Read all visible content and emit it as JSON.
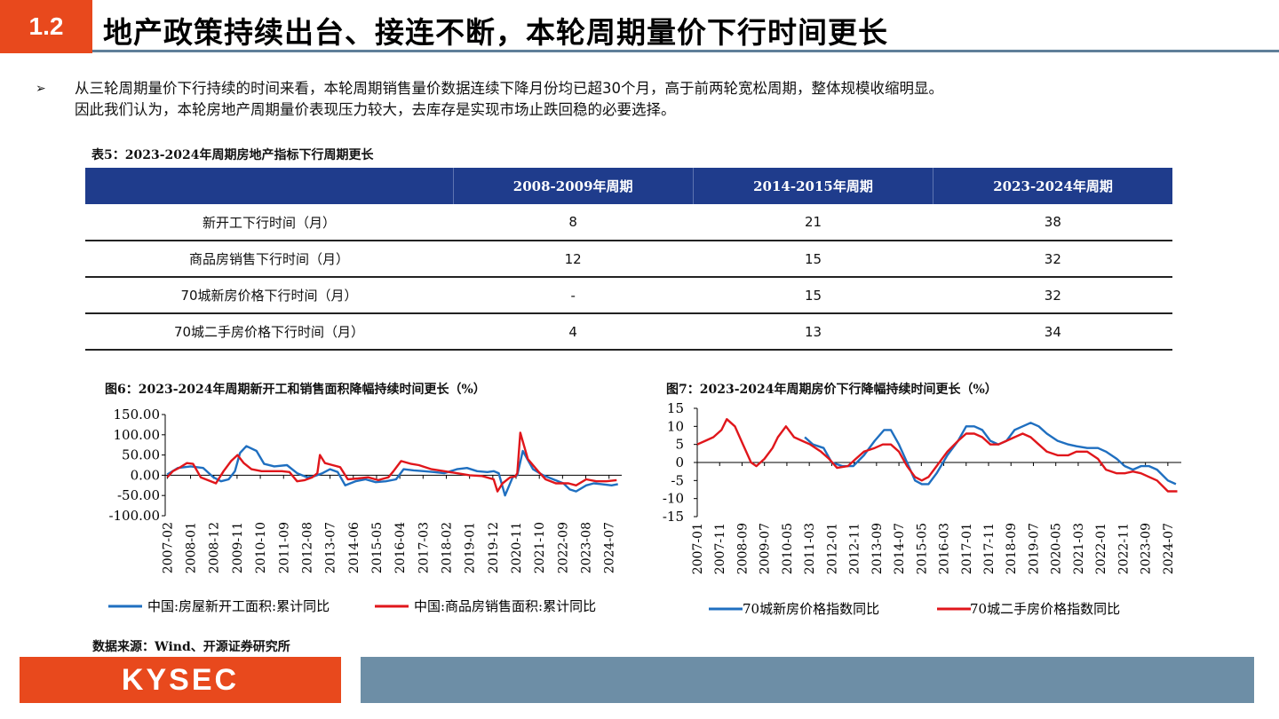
{
  "header": {
    "section_number": "1.2",
    "title": "地产政策持续出台、接连不断，本轮周期量价下行时间更长"
  },
  "bullet": {
    "mark": "➢",
    "line1": "从三轮周期量价下行持续的时间来看，本轮周期销售量价数据连续下降月份均已超30个月，高于前两轮宽松周期，整体规模收缩明显。",
    "line2": "因此我们认为，本轮房地产周期量价表现压力较大，去库存是实现市场止跌回稳的必要选择。"
  },
  "table": {
    "caption": "表5：2023-2024年周期房地产指标下行周期更长",
    "headers": [
      "",
      "2008-2009年周期",
      "2014-2015年周期",
      "2023-2024年周期"
    ],
    "rows": [
      [
        "新开工下行时间（月）",
        "8",
        "21",
        "38"
      ],
      [
        "商品房销售下行时间（月）",
        "12",
        "15",
        "32"
      ],
      [
        "70城新房价格下行时间（月）",
        "-",
        "15",
        "32"
      ],
      [
        "70城二手房价格下行时间（月）",
        "4",
        "13",
        "34"
      ]
    ]
  },
  "chart_data": [
    {
      "type": "line",
      "title": "图6：2023-2024年周期新开工和销售面积降幅持续时间更长（%）",
      "xlabel": "",
      "ylabel": "",
      "ylim": [
        -100,
        150
      ],
      "yticks": [
        "150.00",
        "100.00",
        "50.00",
        "0.00",
        "-50.00",
        "-100.00"
      ],
      "ytick_values": [
        150,
        100,
        50,
        0,
        -50,
        -100
      ],
      "xticks": [
        "2007-02",
        "2008-01",
        "2008-12",
        "2009-11",
        "2010-10",
        "2011-09",
        "2012-08",
        "2013-07",
        "2014-06",
        "2015-05",
        "2016-04",
        "2017-03",
        "2018-02",
        "2019-01",
        "2019-12",
        "2020-11",
        "2021-10",
        "2022-09",
        "2023-08",
        "2024-07"
      ],
      "xrange": [
        2007.0,
        2025.0
      ],
      "legend_position": "bottom",
      "grid": false,
      "series": [
        {
          "name": "中国:房屋新开工面积:累计同比",
          "color": "#1f6fc0",
          "x": [
            2007.08,
            2007.5,
            2008.0,
            2008.5,
            2008.9,
            2009.2,
            2009.5,
            2009.75,
            2009.95,
            2010.2,
            2010.6,
            2010.9,
            2011.3,
            2011.8,
            2012.2,
            2012.6,
            2012.9,
            2013.2,
            2013.5,
            2013.8,
            2014.1,
            2014.5,
            2014.9,
            2015.3,
            2015.7,
            2016.1,
            2016.4,
            2016.8,
            2017.2,
            2017.6,
            2018.0,
            2018.5,
            2018.9,
            2019.3,
            2019.7,
            2019.95,
            2020.15,
            2020.4,
            2020.7,
            2020.88,
            2021.1,
            2021.5,
            2021.9,
            2022.3,
            2022.7,
            2022.95,
            2023.2,
            2023.6,
            2023.9,
            2024.2,
            2024.6,
            2024.85
          ],
          "y": [
            2,
            18,
            22,
            18,
            -5,
            -15,
            -10,
            10,
            55,
            72,
            60,
            28,
            22,
            25,
            5,
            -5,
            -2,
            5,
            15,
            8,
            -25,
            -15,
            -10,
            -17,
            -15,
            -10,
            15,
            12,
            10,
            8,
            5,
            15,
            18,
            10,
            8,
            10,
            5,
            -50,
            -5,
            0,
            60,
            15,
            0,
            -10,
            -20,
            -35,
            -40,
            -25,
            -20,
            -22,
            -25,
            -22
          ]
        },
        {
          "name": "中国:商品房销售面积:累计同比",
          "color": "#e0161b",
          "x": [
            2007.08,
            2007.3,
            2007.6,
            2007.85,
            2008.1,
            2008.4,
            2008.8,
            2009.0,
            2009.3,
            2009.6,
            2009.85,
            2010.1,
            2010.4,
            2010.8,
            2011.2,
            2011.6,
            2011.9,
            2012.2,
            2012.5,
            2012.8,
            2013.0,
            2013.1,
            2013.3,
            2013.6,
            2013.9,
            2014.2,
            2014.6,
            2015.0,
            2015.4,
            2015.8,
            2016.0,
            2016.3,
            2016.7,
            2017.0,
            2017.5,
            2018.0,
            2018.5,
            2019.0,
            2019.5,
            2019.95,
            2020.1,
            2020.3,
            2020.6,
            2020.8,
            2020.88,
            2021.0,
            2021.3,
            2021.7,
            2022.0,
            2022.4,
            2022.9,
            2023.2,
            2023.6,
            2024.0,
            2024.4,
            2024.8
          ],
          "y": [
            -5,
            10,
            20,
            30,
            28,
            -5,
            -15,
            -20,
            10,
            35,
            50,
            30,
            15,
            10,
            10,
            10,
            8,
            -15,
            -12,
            -5,
            5,
            50,
            30,
            25,
            20,
            -10,
            -8,
            -5,
            -12,
            -5,
            10,
            35,
            28,
            25,
            15,
            10,
            5,
            0,
            -2,
            -10,
            -40,
            -20,
            -5,
            -3,
            5,
            105,
            40,
            10,
            -10,
            -20,
            -20,
            -25,
            -10,
            -15,
            -15,
            -12
          ]
        }
      ]
    },
    {
      "type": "line",
      "title": "图7：2023-2024年周期房价下行降幅持续时间更长（%）",
      "xlabel": "",
      "ylabel": "",
      "ylim": [
        -15,
        15
      ],
      "yticks": [
        "15",
        "10",
        "5",
        "0",
        "-5",
        "-10",
        "-15"
      ],
      "ytick_values": [
        15,
        10,
        5,
        0,
        -5,
        -10,
        -15
      ],
      "xticks": [
        "2007-01",
        "2007-11",
        "2008-09",
        "2009-07",
        "2010-05",
        "2011-03",
        "2012-01",
        "2012-11",
        "2013-09",
        "2014-07",
        "2015-05",
        "2016-03",
        "2017-01",
        "2017-11",
        "2018-09",
        "2019-07",
        "2020-05",
        "2021-03",
        "2022-01",
        "2022-11",
        "2023-09",
        "2024-07"
      ],
      "xrange": [
        2007.0,
        2025.0
      ],
      "legend_position": "bottom",
      "grid": false,
      "series": [
        {
          "name": "70城新房价格指数同比",
          "color": "#1f6fc0",
          "x": [
            2011.0,
            2011.3,
            2011.7,
            2012.0,
            2012.4,
            2012.8,
            2013.2,
            2013.6,
            2013.95,
            2014.2,
            2014.5,
            2014.8,
            2015.1,
            2015.35,
            2015.6,
            2015.9,
            2016.3,
            2016.7,
            2017.0,
            2017.3,
            2017.6,
            2017.9,
            2018.2,
            2018.5,
            2018.8,
            2019.1,
            2019.4,
            2019.7,
            2020.0,
            2020.4,
            2020.8,
            2021.1,
            2021.5,
            2021.9,
            2022.2,
            2022.6,
            2022.9,
            2023.2,
            2023.5,
            2023.8,
            2024.1,
            2024.5,
            2024.8
          ],
          "y": [
            7,
            5,
            4,
            0,
            -1,
            -1,
            2,
            6,
            9,
            9,
            5,
            0,
            -5,
            -6,
            -6,
            -3,
            2,
            6,
            10,
            10,
            9,
            6,
            5,
            6,
            9,
            10,
            11,
            10,
            8,
            6,
            5,
            4.5,
            4,
            4,
            3,
            1,
            -1,
            -2,
            -1,
            -1,
            -2,
            -5,
            -6
          ]
        },
        {
          "name": "70城二手房价格指数同比",
          "color": "#e0161b",
          "x": [
            2007.0,
            2007.3,
            2007.6,
            2007.9,
            2008.1,
            2008.4,
            2008.7,
            2009.0,
            2009.2,
            2009.5,
            2009.8,
            2010.0,
            2010.3,
            2010.6,
            2010.9,
            2011.2,
            2011.6,
            2011.9,
            2012.2,
            2012.6,
            2012.9,
            2013.2,
            2013.6,
            2013.9,
            2014.2,
            2014.5,
            2014.8,
            2015.1,
            2015.35,
            2015.6,
            2015.9,
            2016.3,
            2016.7,
            2017.0,
            2017.3,
            2017.6,
            2017.9,
            2018.2,
            2018.5,
            2018.8,
            2019.1,
            2019.4,
            2019.7,
            2020.0,
            2020.4,
            2020.8,
            2021.1,
            2021.5,
            2021.9,
            2022.2,
            2022.6,
            2022.9,
            2023.2,
            2023.5,
            2023.8,
            2024.1,
            2024.5,
            2024.85
          ],
          "y": [
            5,
            6,
            7,
            9,
            12,
            10,
            5,
            0,
            -1,
            1,
            4,
            7,
            10,
            7,
            6,
            5,
            3,
            1,
            -1.5,
            -1,
            1,
            3,
            4,
            5,
            5,
            3,
            -1,
            -4,
            -5,
            -4,
            -1,
            3,
            6,
            8,
            8,
            7,
            5,
            5,
            6,
            7,
            8,
            7,
            5,
            3,
            2,
            2,
            3,
            3,
            1,
            -2,
            -3,
            -3,
            -2.5,
            -3,
            -4,
            -5,
            -8,
            -8
          ]
        }
      ]
    }
  ],
  "source": "数据来源：Wind、开源证券研究所",
  "footer": {
    "logo": "KYSEC"
  }
}
